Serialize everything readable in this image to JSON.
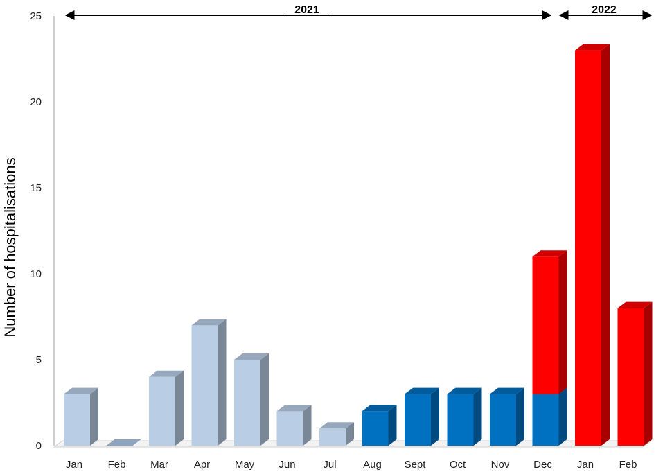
{
  "chart_data": {
    "type": "bar",
    "ylabel": "Number of hospitalisations",
    "ylim": [
      0,
      25
    ],
    "yticks": [
      "0",
      "5",
      "10",
      "15",
      "20",
      "25"
    ],
    "categories": [
      "Jan",
      "Feb",
      "Mar",
      "Apr",
      "May",
      "Jun",
      "Jul",
      "Aug",
      "Sept",
      "Oct",
      "Nov",
      "Dec",
      "Jan",
      "Feb"
    ],
    "series": [
      {
        "color": "#b9cde5",
        "values": [
          3,
          0,
          4,
          7,
          5,
          2,
          1,
          0,
          0,
          0,
          0,
          0,
          0,
          0
        ]
      },
      {
        "color": "#0070c0",
        "values": [
          0,
          0,
          0,
          0,
          0,
          0,
          0,
          2,
          3,
          3,
          3,
          3,
          0,
          0
        ]
      },
      {
        "color": "#ff0000",
        "values": [
          0,
          0,
          0,
          0,
          0,
          0,
          0,
          0,
          0,
          0,
          0,
          8,
          23,
          8
        ]
      }
    ],
    "stacked": true,
    "year_spans": [
      {
        "label": "2021",
        "from": 0,
        "to": 11
      },
      {
        "label": "2022",
        "from": 12,
        "to": 13
      }
    ],
    "grid": false,
    "style": "3d-column"
  }
}
